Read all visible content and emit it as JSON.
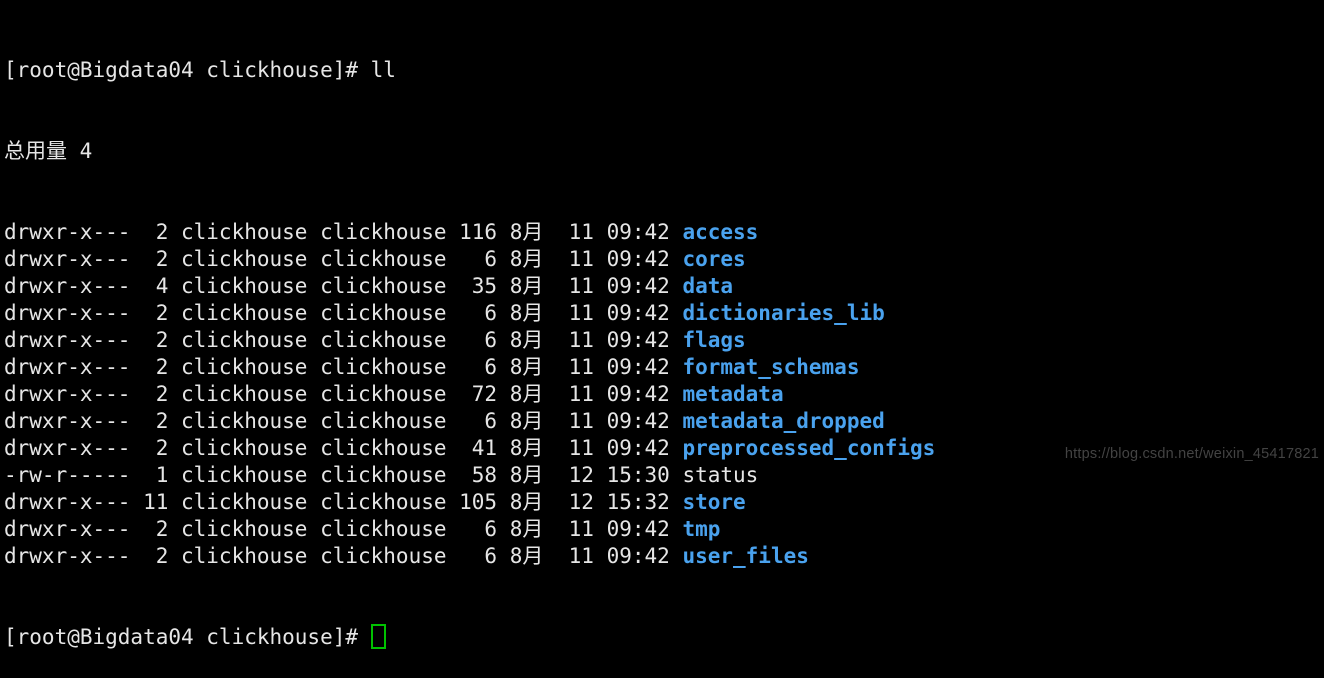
{
  "colors": {
    "background": "#000000",
    "text": "#e6e6e6",
    "directory": "#4aa2ee",
    "cursor": "#00c200",
    "watermark": "#434343"
  },
  "terminal": {
    "prompt": "[root@Bigdata04 clickhouse]# ",
    "command": "ll",
    "total_line": "总用量 4",
    "listing": {
      "rows": [
        {
          "perms": "drwxr-x---",
          "links": "2",
          "owner": "clickhouse",
          "group": "clickhouse",
          "size": "116",
          "month": "8月",
          "day": "11",
          "time": "09:42",
          "name": "access",
          "type": "dir"
        },
        {
          "perms": "drwxr-x---",
          "links": "2",
          "owner": "clickhouse",
          "group": "clickhouse",
          "size": "6",
          "month": "8月",
          "day": "11",
          "time": "09:42",
          "name": "cores",
          "type": "dir"
        },
        {
          "perms": "drwxr-x---",
          "links": "4",
          "owner": "clickhouse",
          "group": "clickhouse",
          "size": "35",
          "month": "8月",
          "day": "11",
          "time": "09:42",
          "name": "data",
          "type": "dir"
        },
        {
          "perms": "drwxr-x---",
          "links": "2",
          "owner": "clickhouse",
          "group": "clickhouse",
          "size": "6",
          "month": "8月",
          "day": "11",
          "time": "09:42",
          "name": "dictionaries_lib",
          "type": "dir"
        },
        {
          "perms": "drwxr-x---",
          "links": "2",
          "owner": "clickhouse",
          "group": "clickhouse",
          "size": "6",
          "month": "8月",
          "day": "11",
          "time": "09:42",
          "name": "flags",
          "type": "dir"
        },
        {
          "perms": "drwxr-x---",
          "links": "2",
          "owner": "clickhouse",
          "group": "clickhouse",
          "size": "6",
          "month": "8月",
          "day": "11",
          "time": "09:42",
          "name": "format_schemas",
          "type": "dir"
        },
        {
          "perms": "drwxr-x---",
          "links": "2",
          "owner": "clickhouse",
          "group": "clickhouse",
          "size": "72",
          "month": "8月",
          "day": "11",
          "time": "09:42",
          "name": "metadata",
          "type": "dir"
        },
        {
          "perms": "drwxr-x---",
          "links": "2",
          "owner": "clickhouse",
          "group": "clickhouse",
          "size": "6",
          "month": "8月",
          "day": "11",
          "time": "09:42",
          "name": "metadata_dropped",
          "type": "dir"
        },
        {
          "perms": "drwxr-x---",
          "links": "2",
          "owner": "clickhouse",
          "group": "clickhouse",
          "size": "41",
          "month": "8月",
          "day": "11",
          "time": "09:42",
          "name": "preprocessed_configs",
          "type": "dir"
        },
        {
          "perms": "-rw-r-----",
          "links": "1",
          "owner": "clickhouse",
          "group": "clickhouse",
          "size": "58",
          "month": "8月",
          "day": "12",
          "time": "15:30",
          "name": "status",
          "type": "file"
        },
        {
          "perms": "drwxr-x---",
          "links": "11",
          "owner": "clickhouse",
          "group": "clickhouse",
          "size": "105",
          "month": "8月",
          "day": "12",
          "time": "15:32",
          "name": "store",
          "type": "dir"
        },
        {
          "perms": "drwxr-x---",
          "links": "2",
          "owner": "clickhouse",
          "group": "clickhouse",
          "size": "6",
          "month": "8月",
          "day": "11",
          "time": "09:42",
          "name": "tmp",
          "type": "dir"
        },
        {
          "perms": "drwxr-x---",
          "links": "2",
          "owner": "clickhouse",
          "group": "clickhouse",
          "size": "6",
          "month": "8月",
          "day": "11",
          "time": "09:42",
          "name": "user_files",
          "type": "dir"
        }
      ]
    }
  },
  "watermark": {
    "text": "https://blog.csdn.net/weixin_45417821"
  }
}
